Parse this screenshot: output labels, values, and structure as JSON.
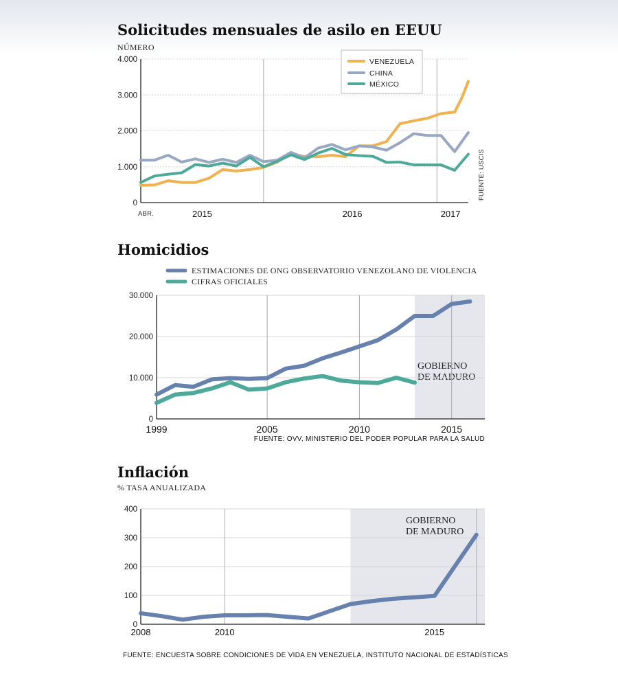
{
  "chart_data": [
    {
      "type": "line",
      "title": "Solicitudes mensuales de asilo en EEUU",
      "ylabel": "NÚMERO",
      "ylim": [
        0,
        4000
      ],
      "yticks": [
        0,
        1000,
        2000,
        3000,
        4000
      ],
      "ytick_labels": [
        "0",
        "1.000",
        "2.000",
        "3.000",
        "4.000"
      ],
      "xlim": [
        0,
        24
      ],
      "x_start_label": "ABR.",
      "x_year_labels": [
        {
          "label": "2015",
          "x": 4.5
        },
        {
          "label": "2016",
          "x": 15.5
        },
        {
          "label": "2017",
          "x": 22.7
        }
      ],
      "x_dividers": [
        9,
        21.7
      ],
      "grid": true,
      "legend_position": "top-right",
      "source": "FUENTE: USCIS",
      "series": [
        {
          "name": "VENEZUELA",
          "color": "#efb24f",
          "x": [
            0,
            1,
            2,
            3,
            4,
            5,
            6,
            7,
            8,
            9,
            10,
            11,
            12,
            13,
            14,
            15,
            16,
            17,
            18,
            19,
            20,
            21,
            22,
            23,
            23.5,
            24
          ],
          "values": [
            480,
            490,
            610,
            560,
            560,
            680,
            920,
            880,
            920,
            980,
            1130,
            1370,
            1280,
            1280,
            1320,
            1280,
            1580,
            1580,
            1700,
            2200,
            2280,
            2350,
            2480,
            2520,
            2900,
            3380
          ]
        },
        {
          "name": "CHINA",
          "color": "#97a7c4",
          "x": [
            0,
            1,
            2,
            3,
            4,
            5,
            6,
            7,
            8,
            9,
            10,
            11,
            12,
            13,
            14,
            15,
            16,
            17,
            18,
            19,
            20,
            21,
            22,
            23,
            24
          ],
          "values": [
            1180,
            1180,
            1320,
            1130,
            1220,
            1120,
            1210,
            1120,
            1320,
            1140,
            1180,
            1400,
            1250,
            1520,
            1620,
            1470,
            1580,
            1550,
            1460,
            1670,
            1920,
            1870,
            1870,
            1420,
            1950
          ]
        },
        {
          "name": "MÉXICO",
          "color": "#4daa9b",
          "x": [
            0,
            1,
            2,
            3,
            4,
            5,
            6,
            7,
            8,
            9,
            10,
            11,
            12,
            13,
            14,
            15,
            16,
            17,
            18,
            19,
            20,
            21,
            22,
            23,
            24
          ],
          "values": [
            560,
            740,
            790,
            830,
            1060,
            1020,
            1100,
            1020,
            1260,
            1000,
            1150,
            1330,
            1200,
            1380,
            1510,
            1340,
            1310,
            1290,
            1120,
            1130,
            1050,
            1050,
            1050,
            900,
            1350
          ]
        }
      ]
    },
    {
      "type": "line",
      "title": "Homicidios",
      "ylim": [
        0,
        30000
      ],
      "yticks": [
        0,
        10000,
        20000,
        30000
      ],
      "ytick_labels": [
        "0",
        "10.000",
        "20.000",
        "30.000"
      ],
      "xlim": [
        1999,
        2016.8
      ],
      "xticks": [
        1999,
        2005,
        2010,
        2015
      ],
      "xtick_labels": [
        "1999",
        "2005",
        "2010",
        "2015"
      ],
      "shaded_region": {
        "from": 2013,
        "to": 2016.8,
        "label_lines": [
          "GOBIERNO",
          "DE MADURO"
        ]
      },
      "grid": true,
      "legend_position": "top-left",
      "source": "FUENTE: OVV, MINISTERIO DEL PODER POPULAR PARA LA SALUD",
      "series": [
        {
          "name": "ESTIMACIONES DE ONG OBSERVATORIO VENEZOLANO DE VIOLENCIA",
          "color": "#6681ad",
          "x": [
            1999,
            2000,
            2001,
            2002,
            2003,
            2004,
            2005,
            2006,
            2007,
            2008,
            2009,
            2010,
            2011,
            2012,
            2013,
            2014,
            2015,
            2016
          ],
          "values": [
            5900,
            8200,
            7800,
            9600,
            9900,
            9700,
            9900,
            12200,
            12900,
            14700,
            16100,
            17600,
            19100,
            21700,
            25000,
            25000,
            27900,
            28500
          ]
        },
        {
          "name": "CIFRAS OFICIALES",
          "color": "#4daa9b",
          "x": [
            1999,
            2000,
            2001,
            2002,
            2003,
            2004,
            2005,
            2006,
            2007,
            2008,
            2009,
            2010,
            2011,
            2012,
            2013
          ],
          "values": [
            3900,
            5900,
            6300,
            7400,
            8900,
            7100,
            7400,
            8900,
            9800,
            10400,
            9300,
            8900,
            8700,
            10000,
            8800
          ]
        }
      ]
    },
    {
      "type": "line",
      "title": "Inflación",
      "ylabel": "% TASA ANUALIZADA",
      "ylim": [
        0,
        400
      ],
      "yticks": [
        0,
        100,
        200,
        300,
        400
      ],
      "ytick_labels": [
        "0",
        "100",
        "200",
        "300",
        "400"
      ],
      "xlim": [
        2008,
        2016.2
      ],
      "xticks": [
        2008,
        2010,
        2015
      ],
      "xtick_labels": [
        "2008",
        "2010",
        "2015"
      ],
      "x_dividers": [
        2010,
        2016
      ],
      "shaded_region": {
        "from": 2013,
        "to": 2016.2,
        "label_lines": [
          "GOBIERNO",
          "DE MADURO"
        ]
      },
      "grid": true,
      "source": "FUENTE: ENCUESTA SOBRE CONDICIONES DE VIDA EN VENEZUELA, INSTITUTO NACIONAL DE ESTADÍSTICAS",
      "series": [
        {
          "name": "",
          "color": "#6681ad",
          "x": [
            2008,
            2008.5,
            2009,
            2009.5,
            2010,
            2010.5,
            2011,
            2012,
            2012.5,
            2013,
            2013.5,
            2014,
            2015,
            2016
          ],
          "values": [
            38,
            28,
            16,
            26,
            31,
            31,
            32,
            20,
            45,
            70,
            80,
            88,
            98,
            310
          ]
        }
      ]
    }
  ]
}
